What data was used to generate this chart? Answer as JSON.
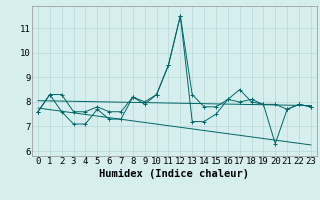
{
  "x": [
    0,
    1,
    2,
    3,
    4,
    5,
    6,
    7,
    8,
    9,
    10,
    11,
    12,
    13,
    14,
    15,
    16,
    17,
    18,
    19,
    20,
    21,
    22,
    23
  ],
  "line1": [
    7.6,
    8.3,
    8.3,
    7.6,
    7.6,
    7.8,
    7.6,
    7.6,
    8.2,
    8.0,
    8.3,
    9.5,
    11.5,
    8.3,
    7.8,
    7.8,
    8.1,
    8.0,
    8.1,
    7.9,
    7.9,
    7.7,
    7.9,
    7.8
  ],
  "line2": [
    7.6,
    8.3,
    7.6,
    7.1,
    7.1,
    7.7,
    7.3,
    7.3,
    8.2,
    7.9,
    8.3,
    9.5,
    11.5,
    7.2,
    7.2,
    7.5,
    8.1,
    8.5,
    8.0,
    7.9,
    6.3,
    7.7,
    7.9,
    7.8
  ],
  "line3_x": [
    0,
    23
  ],
  "line3_y": [
    8.05,
    7.85
  ],
  "line4_x": [
    0,
    23
  ],
  "line4_y": [
    7.75,
    6.25
  ],
  "bg_color": "#d6eeee",
  "line_color": "#006666",
  "grid_color": "#b8d8d8",
  "xlabel": "Humidex (Indice chaleur)",
  "ylabel_ticks": [
    6,
    7,
    8,
    9,
    10,
    11
  ],
  "xlim": [
    -0.5,
    23.5
  ],
  "ylim": [
    5.8,
    11.9
  ],
  "xlabel_fontsize": 7.5,
  "tick_fontsize": 6.5
}
